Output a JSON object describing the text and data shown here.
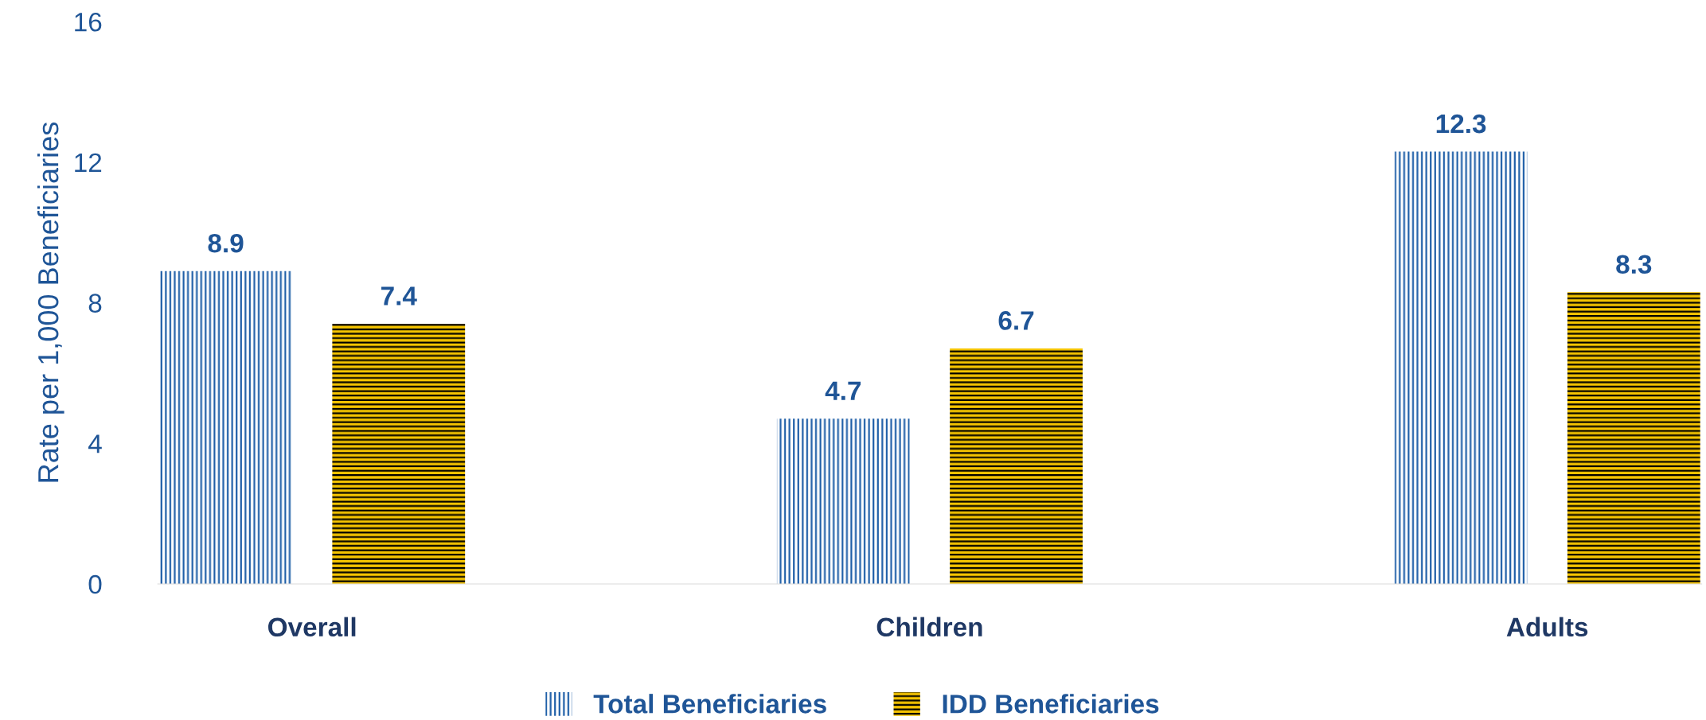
{
  "chart_data": {
    "type": "bar",
    "ylabel": "Rate per 1,000 Beneficiaries",
    "categories": [
      "Overall",
      "Children",
      "Adults"
    ],
    "series": [
      {
        "name": "Total Beneficiaries",
        "color": "#1f5fa8",
        "values": [
          8.9,
          4.7,
          12.3
        ]
      },
      {
        "name": "IDD Beneficiaries",
        "color": "#f5c400",
        "values": [
          7.4,
          6.7,
          8.3
        ]
      }
    ],
    "ylim": [
      0,
      16
    ],
    "yticks": [
      0,
      4,
      8,
      12,
      16
    ],
    "data_labels": true,
    "legend": "bottom",
    "grid": false
  }
}
